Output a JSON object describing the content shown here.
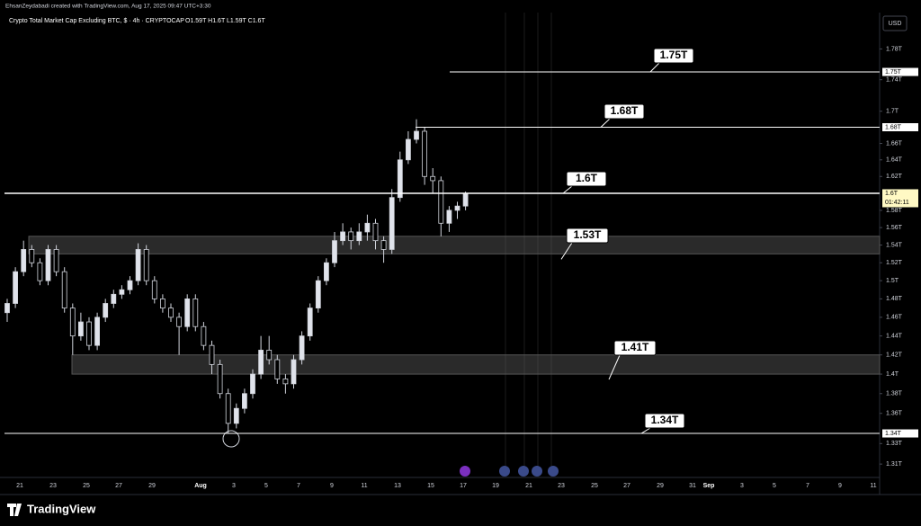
{
  "header": {
    "author_line": "EhsanZeydabadi created with TradingView.com, Aug 17, 2025 09:47 UTC+3:30"
  },
  "footer": {
    "brand": "TradingView"
  },
  "chart_data": {
    "type": "candlestick",
    "title": "Crypto Total Market Cap Excluding BTC, $ · 4h · CRYPTOCAP",
    "ohlc_label": "O1.59T H1.6T L1.59T C1.6T",
    "currency": "USD",
    "log_scale": true,
    "ylim": [
      1.298,
      1.826
    ],
    "yticks": [
      {
        "value": 1.78,
        "label": "1.78T"
      },
      {
        "value": 1.74,
        "label": "1.74T"
      },
      {
        "value": 1.7,
        "label": "1.7T"
      },
      {
        "value": 1.66,
        "label": "1.66T"
      },
      {
        "value": 1.64,
        "label": "1.64T"
      },
      {
        "value": 1.62,
        "label": "1.62T"
      },
      {
        "value": 1.58,
        "label": "1.58T"
      },
      {
        "value": 1.56,
        "label": "1.56T"
      },
      {
        "value": 1.54,
        "label": "1.54T"
      },
      {
        "value": 1.52,
        "label": "1.52T"
      },
      {
        "value": 1.5,
        "label": "1.5T"
      },
      {
        "value": 1.48,
        "label": "1.48T"
      },
      {
        "value": 1.46,
        "label": "1.46T"
      },
      {
        "value": 1.44,
        "label": "1.44T"
      },
      {
        "value": 1.42,
        "label": "1.42T"
      },
      {
        "value": 1.4,
        "label": "1.4T"
      },
      {
        "value": 1.38,
        "label": "1.38T"
      },
      {
        "value": 1.36,
        "label": "1.36T"
      },
      {
        "value": 1.33,
        "label": "1.33T"
      },
      {
        "value": 1.31,
        "label": "1.31T"
      }
    ],
    "x_labels": [
      "21",
      "23",
      "25",
      "27",
      "29",
      "Aug",
      "3",
      "5",
      "7",
      "9",
      "11",
      "13",
      "15",
      "17",
      "19",
      "21",
      "23",
      "25",
      "27",
      "29",
      "31",
      "Sep",
      "3",
      "5",
      "7",
      "9",
      "11"
    ],
    "open": [
      1.465,
      1.475,
      1.51,
      1.535,
      1.52,
      1.5,
      1.535,
      1.51,
      1.47,
      1.44,
      1.455,
      1.43,
      1.46,
      1.475,
      1.485,
      1.49,
      1.5,
      1.535,
      1.5,
      1.48,
      1.47,
      1.46,
      1.45,
      1.48,
      1.45,
      1.43,
      1.41,
      1.38,
      1.35,
      1.365,
      1.38,
      1.4,
      1.425,
      1.415,
      1.395,
      1.39,
      1.415,
      1.44,
      1.47,
      1.5,
      1.52,
      1.545,
      1.555,
      1.545,
      1.555,
      1.565,
      1.545,
      1.535,
      1.595,
      1.64,
      1.665,
      1.675,
      1.62,
      1.615,
      1.565,
      1.58,
      1.585
    ],
    "high": [
      1.48,
      1.515,
      1.545,
      1.54,
      1.525,
      1.54,
      1.54,
      1.515,
      1.475,
      1.465,
      1.46,
      1.465,
      1.48,
      1.49,
      1.495,
      1.505,
      1.542,
      1.54,
      1.505,
      1.485,
      1.475,
      1.465,
      1.485,
      1.485,
      1.455,
      1.435,
      1.415,
      1.385,
      1.37,
      1.385,
      1.405,
      1.44,
      1.44,
      1.42,
      1.4,
      1.42,
      1.445,
      1.475,
      1.505,
      1.525,
      1.555,
      1.565,
      1.56,
      1.565,
      1.575,
      1.57,
      1.55,
      1.605,
      1.65,
      1.675,
      1.69,
      1.68,
      1.63,
      1.62,
      1.585,
      1.59,
      1.602
    ],
    "low": [
      1.455,
      1.47,
      1.505,
      1.515,
      1.495,
      1.495,
      1.505,
      1.465,
      1.42,
      1.435,
      1.425,
      1.425,
      1.455,
      1.47,
      1.48,
      1.485,
      1.495,
      1.495,
      1.475,
      1.465,
      1.455,
      1.42,
      1.445,
      1.445,
      1.425,
      1.4,
      1.375,
      1.34,
      1.345,
      1.36,
      1.375,
      1.395,
      1.41,
      1.39,
      1.38,
      1.385,
      1.41,
      1.435,
      1.465,
      1.495,
      1.515,
      1.54,
      1.535,
      1.54,
      1.545,
      1.535,
      1.52,
      1.53,
      1.59,
      1.635,
      1.66,
      1.61,
      1.6,
      1.55,
      1.555,
      1.57,
      1.58
    ],
    "close": [
      1.475,
      1.51,
      1.535,
      1.52,
      1.5,
      1.535,
      1.51,
      1.47,
      1.44,
      1.455,
      1.43,
      1.46,
      1.475,
      1.485,
      1.49,
      1.5,
      1.535,
      1.5,
      1.48,
      1.47,
      1.46,
      1.45,
      1.48,
      1.45,
      1.43,
      1.41,
      1.38,
      1.35,
      1.365,
      1.38,
      1.4,
      1.425,
      1.415,
      1.395,
      1.39,
      1.415,
      1.44,
      1.47,
      1.5,
      1.52,
      1.545,
      1.555,
      1.545,
      1.555,
      1.565,
      1.545,
      1.535,
      1.595,
      1.64,
      1.665,
      1.675,
      1.62,
      1.615,
      1.565,
      1.58,
      1.585,
      1.6
    ],
    "levels": [
      {
        "value": 1.75,
        "label": "1.75T"
      },
      {
        "value": 1.68,
        "label": "1.68T"
      },
      {
        "value": 1.6,
        "label": "1.6T",
        "countdown": "01:42:11"
      },
      {
        "value": 1.34,
        "label": "1.34T"
      }
    ],
    "zones": [
      {
        "low": 1.53,
        "high": 1.55,
        "label": "1.53T"
      },
      {
        "low": 1.4,
        "high": 1.42,
        "label": "1.41T"
      }
    ]
  }
}
